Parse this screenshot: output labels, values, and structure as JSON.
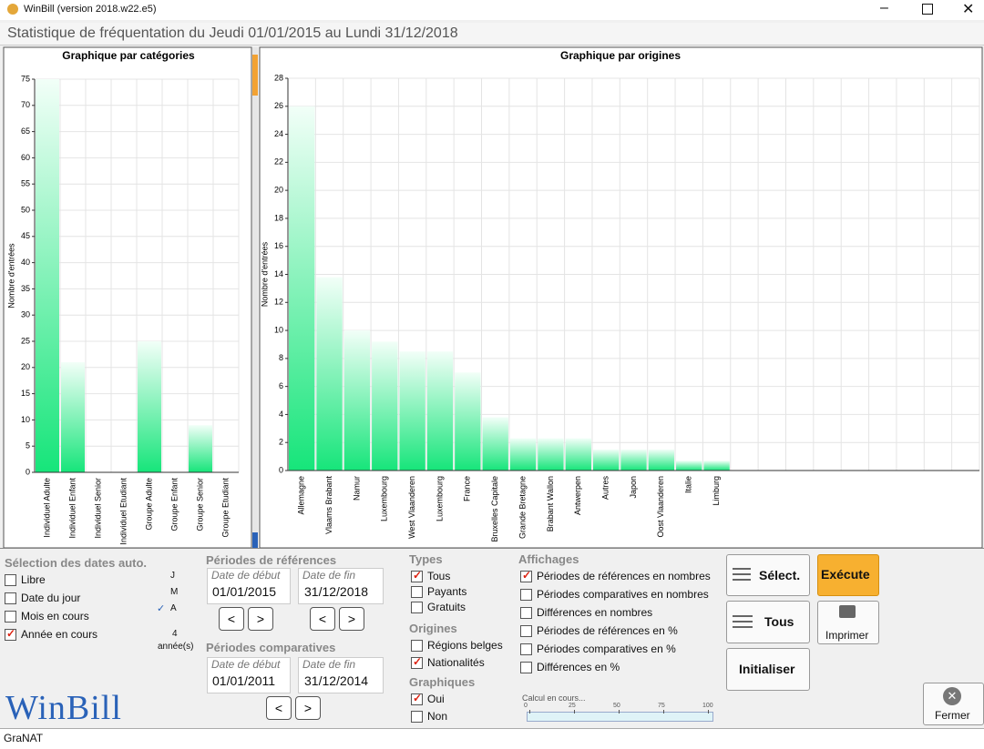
{
  "window": {
    "title": "WinBill (version 2018.w22.e5)"
  },
  "header": {
    "title": "Statistique de fréquentation du Jeudi 01/01/2015 au Lundi 31/12/2018"
  },
  "chart_data": [
    {
      "type": "bar",
      "title": "Graphique par catégories",
      "y_label": "Nombre d'entrées",
      "categories": [
        "Individuel Adulte",
        "Individuel Enfant",
        "Individuel Senior",
        "Individuel Etudiant",
        "Groupe Adulte",
        "Groupe Enfant",
        "Groupe Senior",
        "Groupe Etudiant"
      ],
      "values": [
        75,
        21,
        0,
        0,
        25,
        0,
        9,
        0
      ],
      "color": "#16e57a",
      "ylim": [
        0,
        75
      ],
      "yticks": [
        0,
        5,
        10,
        15,
        20,
        25,
        30,
        35,
        40,
        45,
        50,
        55,
        60,
        65,
        70,
        75
      ],
      "grid": true
    },
    {
      "type": "bar",
      "title": "Graphique par origines",
      "y_label": "Nombre d'entrées",
      "categories": [
        "Allemagne",
        "Vlaams Brabant",
        "Namur",
        "Luxembourg",
        "West Vlaanderen",
        "Luxembourg",
        "France",
        "Bruxelles Capitale",
        "Grande Bretagne",
        "Brabant Wallon",
        "Antwerpen",
        "Autres",
        "Japon",
        "Oost Vlaanderen",
        "Italie",
        "Limburg",
        null,
        null,
        null,
        null,
        null,
        null,
        null,
        null,
        null
      ],
      "values": [
        26,
        13.8,
        10,
        9.2,
        8.5,
        8.5,
        7,
        3.8,
        2.3,
        2.3,
        2.3,
        1.5,
        1.5,
        1.5,
        0.7,
        0.7,
        null,
        null,
        null,
        null,
        null,
        null,
        null,
        null,
        null
      ],
      "color": "#16e57a",
      "ylim": [
        0,
        28
      ],
      "yticks": [
        0,
        2,
        4,
        6,
        8,
        10,
        12,
        14,
        16,
        18,
        20,
        22,
        24,
        26,
        28
      ],
      "grid": true
    }
  ],
  "dates_auto": {
    "title": "Sélection des dates auto.",
    "options": [
      {
        "label": "Libre",
        "checked": false
      },
      {
        "label": "Date du jour",
        "checked": false
      },
      {
        "label": "Mois en cours",
        "checked": false
      },
      {
        "label": "Année en cours",
        "checked": true
      }
    ],
    "units": [
      "J",
      "M",
      "A"
    ],
    "selected_unit": 2,
    "count": 4,
    "count_label": "année(s)"
  },
  "periodes_ref": {
    "title": "Périodes de références",
    "start_label": "Date de début",
    "end_label": "Date de fin",
    "start": "01/01/2015",
    "end": "31/12/2018"
  },
  "periodes_comp": {
    "title": "Périodes comparatives",
    "start_label": "Date de début",
    "end_label": "Date de fin",
    "start": "01/01/2011",
    "end": "31/12/2014"
  },
  "types": {
    "title": "Types",
    "options": [
      {
        "label": "Tous",
        "checked": true
      },
      {
        "label": "Payants",
        "checked": false
      },
      {
        "label": "Gratuits",
        "checked": false
      }
    ]
  },
  "origines": {
    "title": "Origines",
    "options": [
      {
        "label": "Régions belges",
        "checked": false
      },
      {
        "label": "Nationalités",
        "checked": true
      }
    ]
  },
  "graphiques": {
    "title": "Graphiques",
    "options": [
      {
        "label": "Oui",
        "checked": true
      },
      {
        "label": "Non",
        "checked": false
      }
    ]
  },
  "affichages": {
    "title": "Affichages",
    "options": [
      {
        "label": "Périodes de références en nombres",
        "checked": true
      },
      {
        "label": "Périodes comparatives en nombres",
        "checked": false
      },
      {
        "label": "Différences en nombres",
        "checked": false
      },
      {
        "label": "Périodes de références en %",
        "checked": false
      },
      {
        "label": "Périodes comparatives en %",
        "checked": false
      },
      {
        "label": "Différences en %",
        "checked": false
      }
    ]
  },
  "buttons": {
    "select": "Sélect.",
    "all": "Tous",
    "init": "Initialiser",
    "execute": "Exécute",
    "print": "Imprimer",
    "close": "Fermer"
  },
  "progress": {
    "label": "Calcul en cours...",
    "lim": [
      0,
      100
    ],
    "ticks": [
      0,
      25,
      50,
      75,
      100
    ]
  },
  "logo": "WinBill",
  "status": "GraNAT"
}
